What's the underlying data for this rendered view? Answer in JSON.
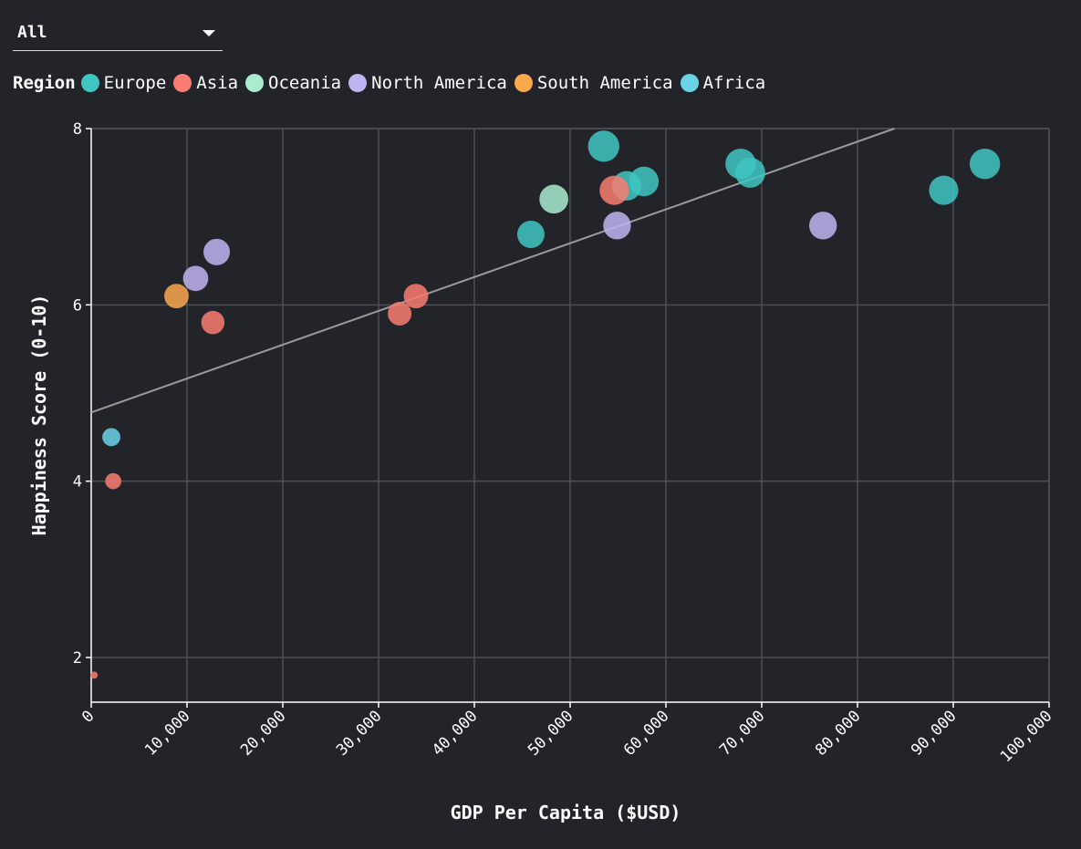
{
  "filter": {
    "selected": "All",
    "icon": "caret-down-icon"
  },
  "legend": {
    "title": "Region"
  },
  "colors": {
    "Europe": "#3fc5c2",
    "Asia": "#f97d70",
    "Oceania": "#a9ecd0",
    "North America": "#bfb4f2",
    "South America": "#fca84c",
    "Africa": "#6ad4e6"
  },
  "chart_data": {
    "type": "scatter",
    "xlabel": "GDP Per Capita ($USD)",
    "ylabel": "Happiness Score (0-10)",
    "xlim": [
      0,
      100000
    ],
    "ylim": [
      1.5,
      8
    ],
    "xticks": [
      0,
      10000,
      20000,
      30000,
      40000,
      50000,
      60000,
      70000,
      80000,
      90000,
      100000
    ],
    "xtick_labels": [
      "0",
      "10,000",
      "20,000",
      "30,000",
      "40,000",
      "50,000",
      "60,000",
      "70,000",
      "80,000",
      "90,000",
      "100,000"
    ],
    "yticks": [
      2,
      4,
      6,
      8
    ],
    "ytick_labels": [
      "2",
      "4",
      "6",
      "8"
    ],
    "grid": true,
    "legend_placement": "top-left",
    "trendline": {
      "intercept": 4.78,
      "slope": 3.84e-05
    },
    "series": [
      {
        "name": "Europe",
        "points": [
          [
            53500,
            7.8
          ],
          [
            55900,
            7.35
          ],
          [
            57700,
            7.4
          ],
          [
            67800,
            7.6
          ],
          [
            68800,
            7.5
          ],
          [
            89000,
            7.3
          ],
          [
            93300,
            7.6
          ],
          [
            45900,
            6.8
          ]
        ]
      },
      {
        "name": "Asia",
        "points": [
          [
            54600,
            7.3
          ],
          [
            32200,
            5.9
          ],
          [
            33900,
            6.1
          ],
          [
            12700,
            5.8
          ],
          [
            2300,
            4.0
          ],
          [
            300,
            1.8
          ]
        ]
      },
      {
        "name": "Oceania",
        "points": [
          [
            48300,
            7.2
          ]
        ]
      },
      {
        "name": "North America",
        "points": [
          [
            54900,
            6.9
          ],
          [
            76400,
            6.9
          ],
          [
            13100,
            6.6
          ],
          [
            10900,
            6.3
          ]
        ]
      },
      {
        "name": "South America",
        "points": [
          [
            8900,
            6.1
          ]
        ]
      },
      {
        "name": "Africa",
        "points": [
          [
            2100,
            4.5
          ]
        ]
      }
    ]
  }
}
